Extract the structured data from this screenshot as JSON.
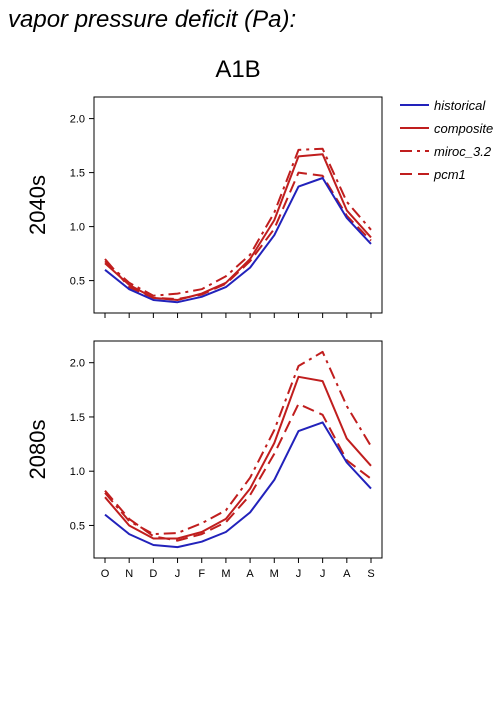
{
  "page": {
    "title": "vapor pressure deficit (Pa):",
    "scenario": "A1B"
  },
  "colors": {
    "historical": "#2222bb",
    "projection": "#c01e1e",
    "axis": "#000000"
  },
  "chart_data": [
    {
      "type": "line",
      "panel_label": "2040s",
      "x": [
        "O",
        "N",
        "D",
        "J",
        "F",
        "M",
        "A",
        "M",
        "J",
        "J",
        "A",
        "S"
      ],
      "ylim": [
        0.2,
        2.2
      ],
      "yticks": [
        0.5,
        1.0,
        1.5,
        2.0
      ],
      "ytick_labels": [
        "0.5",
        "1.0",
        "1.5",
        "2.0"
      ],
      "show_xtick_labels": false,
      "legend_position": "top-right outside",
      "series": [
        {
          "name": "historical",
          "style": "solid",
          "color": "#2222bb",
          "values": [
            0.6,
            0.42,
            0.32,
            0.3,
            0.35,
            0.44,
            0.62,
            0.92,
            1.37,
            1.45,
            1.08,
            0.84
          ]
        },
        {
          "name": "composite",
          "style": "solid",
          "color": "#c01e1e",
          "values": [
            0.66,
            0.46,
            0.34,
            0.32,
            0.38,
            0.48,
            0.7,
            1.06,
            1.65,
            1.67,
            1.15,
            0.9
          ]
        },
        {
          "name": "miroc_3.2",
          "style": "dashdot",
          "color": "#c01e1e",
          "values": [
            0.68,
            0.48,
            0.36,
            0.38,
            0.42,
            0.54,
            0.74,
            1.13,
            1.71,
            1.72,
            1.23,
            0.97
          ]
        },
        {
          "name": "pcm1",
          "style": "dashed",
          "color": "#c01e1e",
          "values": [
            0.7,
            0.44,
            0.34,
            0.33,
            0.37,
            0.47,
            0.68,
            0.98,
            1.5,
            1.47,
            1.1,
            0.87
          ]
        }
      ]
    },
    {
      "type": "line",
      "panel_label": "2080s",
      "x": [
        "O",
        "N",
        "D",
        "J",
        "F",
        "M",
        "A",
        "M",
        "J",
        "J",
        "A",
        "S"
      ],
      "ylim": [
        0.2,
        2.2
      ],
      "yticks": [
        0.5,
        1.0,
        1.5,
        2.0
      ],
      "ytick_labels": [
        "0.5",
        "1.0",
        "1.5",
        "2.0"
      ],
      "show_xtick_labels": true,
      "series": [
        {
          "name": "historical",
          "style": "solid",
          "color": "#2222bb",
          "values": [
            0.6,
            0.42,
            0.32,
            0.3,
            0.35,
            0.44,
            0.62,
            0.92,
            1.37,
            1.45,
            1.08,
            0.84
          ]
        },
        {
          "name": "composite",
          "style": "solid",
          "color": "#c01e1e",
          "values": [
            0.76,
            0.5,
            0.38,
            0.38,
            0.44,
            0.56,
            0.84,
            1.26,
            1.87,
            1.83,
            1.3,
            1.05
          ]
        },
        {
          "name": "miroc_3.2",
          "style": "dashdot",
          "color": "#c01e1e",
          "values": [
            0.8,
            0.54,
            0.42,
            0.43,
            0.52,
            0.64,
            0.94,
            1.38,
            1.97,
            2.1,
            1.6,
            1.23
          ]
        },
        {
          "name": "pcm1",
          "style": "dashed",
          "color": "#c01e1e",
          "values": [
            0.82,
            0.56,
            0.4,
            0.36,
            0.42,
            0.53,
            0.78,
            1.16,
            1.62,
            1.52,
            1.1,
            0.93
          ]
        }
      ]
    }
  ]
}
